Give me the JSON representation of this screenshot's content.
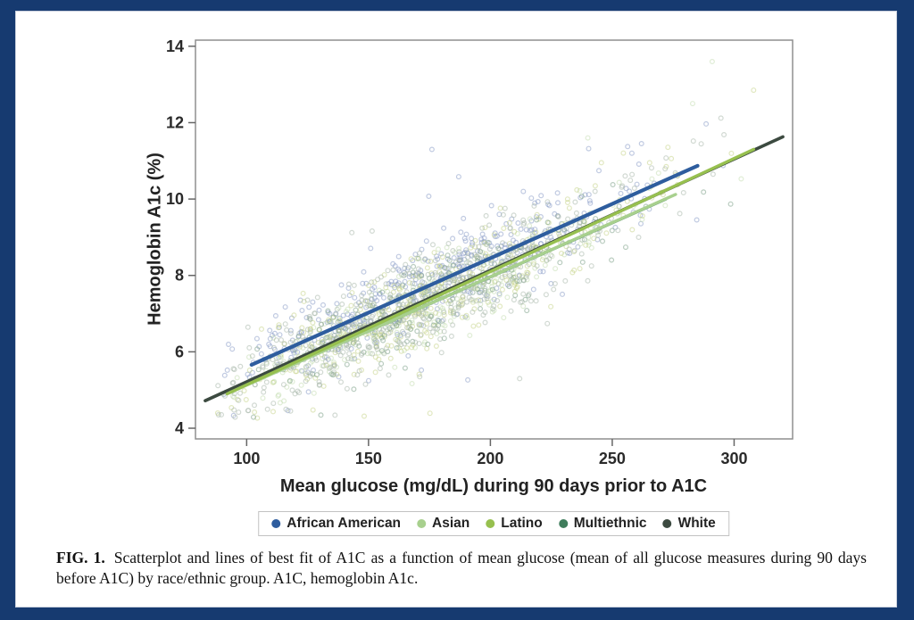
{
  "window": {
    "border_color": "#163a70",
    "panel_background": "#ffffff"
  },
  "figure": {
    "caption_label": "FIG. 1.",
    "caption_text": "Scatterplot and lines of best fit of A1C as a function of mean glucose (mean of all glucose measures during 90 days before A1C) by race/ethnic group. A1C, hemoglobin A1c."
  },
  "chart_data": {
    "type": "scatter",
    "title": "",
    "xlabel": "Mean glucose (mg/dL) during 90 days prior to A1C",
    "ylabel": "Hemoglobin A1c (%)",
    "xlim": [
      79,
      324
    ],
    "ylim": [
      3.72,
      14.16
    ],
    "xticks": [
      100,
      150,
      200,
      250,
      300
    ],
    "yticks": [
      4,
      6,
      8,
      10,
      12,
      14
    ],
    "grid": false,
    "legend_position": "bottom",
    "frame_color": "#8f8f8f",
    "series": [
      {
        "name": "African American",
        "color": "#2e5d9e",
        "scatter_color": "#8296c4",
        "line": [
          [
            102,
            5.66
          ],
          [
            285,
            10.87
          ]
        ],
        "line_width": 4.2,
        "scatter_count": 430
      },
      {
        "name": "Asian",
        "color": "#a8d08e",
        "scatter_color": "#c2dcae",
        "line": [
          [
            93,
            4.93
          ],
          [
            276,
            10.12
          ]
        ],
        "line_width": 3.4,
        "scatter_count": 280
      },
      {
        "name": "Latino",
        "color": "#97c04f",
        "scatter_color": "#c3d184",
        "line": [
          [
            92,
            4.9
          ],
          [
            308,
            11.3
          ]
        ],
        "line_width": 3.4,
        "scatter_count": 340
      },
      {
        "name": "Multiethnic",
        "color": "#3f7d5c",
        "scatter_color": "#74997f",
        "line": [
          [
            96,
            5.02
          ],
          [
            272,
            10.0
          ]
        ],
        "line_width": 3.4,
        "scatter_count": 150
      },
      {
        "name": "White",
        "color": "#3c4a40",
        "scatter_color": "#a3b3a6",
        "line": [
          [
            83,
            4.72
          ],
          [
            320,
            11.63
          ]
        ],
        "line_width": 3.6,
        "scatter_count": 520
      }
    ],
    "line_draw_order": [
      "White",
      "Multiethnic",
      "Asian",
      "Latino",
      "African American"
    ],
    "scatter_cloud": {
      "note": "dense unlabeled patient cloud, positions procedurally approximated from the figure",
      "seed": 42,
      "x_mean": 172,
      "x_sd": 43,
      "x_range": [
        88,
        316
      ],
      "y_noise_sd": 0.6,
      "y_range": [
        4.25,
        13.8
      ],
      "marker_radius": 2.4,
      "marker_opacity": 0.5,
      "outliers": [
        {
          "x": 291,
          "y": 13.6,
          "group": "Asian"
        },
        {
          "x": 308,
          "y": 12.85,
          "group": "Latino"
        },
        {
          "x": 283,
          "y": 12.5,
          "group": "Asian"
        },
        {
          "x": 240,
          "y": 11.6,
          "group": "Asian"
        },
        {
          "x": 262,
          "y": 11.45,
          "group": "African American"
        },
        {
          "x": 176,
          "y": 11.3,
          "group": "African American"
        },
        {
          "x": 118,
          "y": 4.45,
          "group": "White"
        },
        {
          "x": 212,
          "y": 5.3,
          "group": "White"
        }
      ]
    }
  }
}
